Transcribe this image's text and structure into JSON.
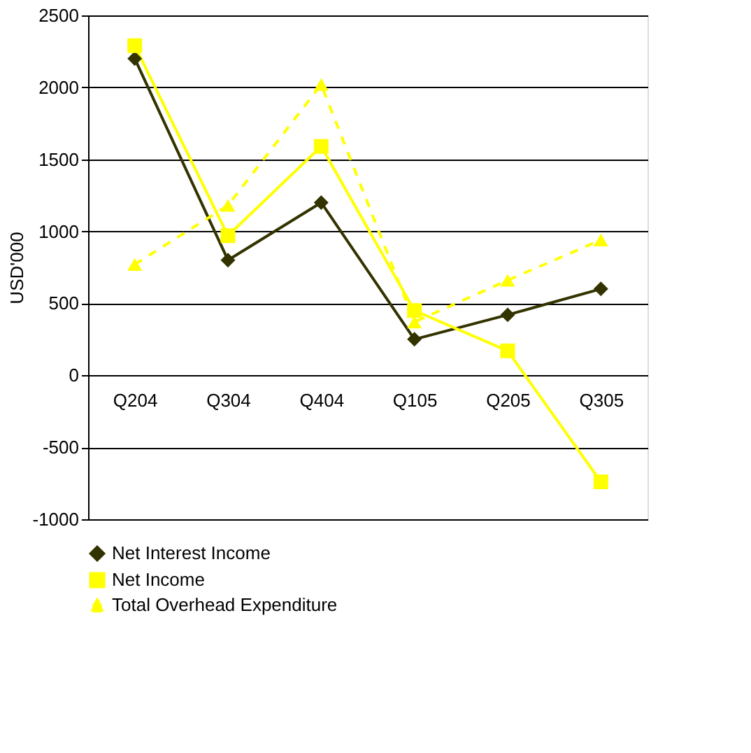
{
  "chart_data": {
    "type": "line",
    "ylabel": "USD'000",
    "categories": [
      "Q204",
      "Q304",
      "Q404",
      "Q105",
      "Q205",
      "Q305"
    ],
    "series": [
      {
        "name": "Net Interest Income",
        "color": "#333300",
        "marker": "diamond",
        "line_style": "solid",
        "values": [
          2200,
          800,
          1200,
          250,
          420,
          600
        ]
      },
      {
        "name": "Net Income",
        "color": "#ffff00",
        "marker": "square",
        "line_style": "solid",
        "values": [
          2290,
          970,
          1590,
          450,
          170,
          -740
        ]
      },
      {
        "name": "Total Overhead Expenditure",
        "color": "#ffff00",
        "marker": "triangle",
        "line_style": "dashed",
        "values": [
          770,
          1180,
          2020,
          370,
          660,
          940
        ]
      }
    ],
    "ylim": [
      -1000,
      2500
    ],
    "yticks": [
      -1000,
      -500,
      0,
      500,
      1000,
      1500,
      2000,
      2500
    ],
    "grid": "y",
    "legend": "bottom"
  }
}
